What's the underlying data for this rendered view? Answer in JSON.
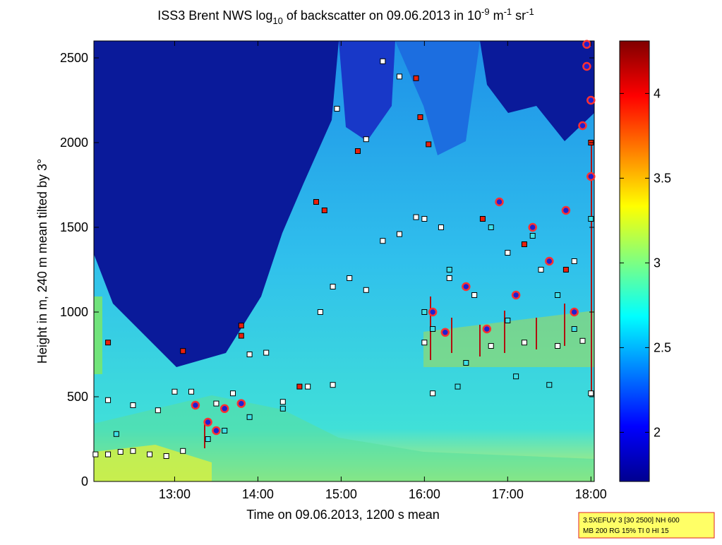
{
  "chart_data": {
    "type": "scatter",
    "title": [
      "ISS3 Brent NWS log",
      "10",
      " of backscatter on 09.06.2013 in 10",
      "-9",
      " m",
      "-1",
      " sr",
      "-1"
    ],
    "x_label": "Time on 09.06.2013, 1200 s mean",
    "y_label": "Height in m, 240 m mean tilted by 3°",
    "xlim": [
      12.03,
      18.04
    ],
    "xticks": [
      {
        "value": 13,
        "label": "13:00"
      },
      {
        "value": 14,
        "label": "14:00"
      },
      {
        "value": 15,
        "label": "15:00"
      },
      {
        "value": 16,
        "label": "16:00"
      },
      {
        "value": 17,
        "label": "17:00"
      },
      {
        "value": 18,
        "label": "18:00"
      }
    ],
    "ylim": [
      0,
      2600
    ],
    "yticks": [
      0,
      500,
      1000,
      1500,
      2000,
      2500
    ],
    "colorbar": {
      "lim": [
        1.71,
        4.31
      ],
      "ticks": [
        2,
        2.5,
        3,
        3.5,
        4
      ]
    },
    "annotation": [
      "3.5XEFUV 3 [30 2500] NH 600",
      "MB 200 RG 15% TI 0 HI 15"
    ],
    "series": [
      {
        "marker": "square",
        "color": "#ffffff",
        "edge": "#000000",
        "x": [
          12.05,
          12.2,
          12.35,
          12.5,
          12.7,
          12.9,
          13.1,
          12.2,
          12.5,
          12.8,
          13.0,
          13.2,
          13.5,
          13.7,
          13.9,
          14.1,
          14.3,
          14.6,
          14.9,
          14.75,
          14.9,
          15.1,
          15.3,
          15.5,
          15.7,
          15.9,
          16.0,
          16.2,
          15.5,
          15.7,
          15.3,
          14.95,
          16.0,
          16.8,
          17.2,
          17.6,
          17.9,
          18.0,
          16.1,
          16.3,
          16.6,
          17.0,
          17.4,
          17.8
        ],
        "values": [
          160,
          160,
          175,
          180,
          160,
          150,
          180,
          480,
          450,
          420,
          530,
          530,
          460,
          520,
          750,
          760,
          470,
          560,
          570,
          1000,
          1150,
          1200,
          1130,
          1420,
          1460,
          1560,
          1550,
          1500,
          2480,
          2390,
          2020,
          2200,
          820,
          800,
          820,
          800,
          830,
          520,
          520,
          1200,
          1100,
          1350,
          1250,
          1300
        ]
      },
      {
        "marker": "square",
        "color": "#e8200c",
        "edge": "#000000",
        "x": [
          12.2,
          13.1,
          13.8,
          13.8,
          14.5,
          14.7,
          14.8,
          15.2,
          15.9,
          16.05,
          15.95,
          16.7,
          17.2,
          17.7,
          18.0
        ],
        "values": [
          820,
          770,
          920,
          860,
          560,
          1650,
          1600,
          1950,
          2380,
          1990,
          2150,
          1550,
          1400,
          1250,
          2000
        ]
      },
      {
        "marker": "square",
        "color": "#40e0e8",
        "edge": "#000000",
        "x": [
          12.3,
          13.4,
          13.6,
          13.9,
          14.3,
          16.0,
          16.1,
          16.3,
          16.5,
          16.8,
          17.0,
          17.3,
          17.6,
          17.8,
          18.0,
          16.4,
          17.1,
          17.5
        ],
        "values": [
          280,
          250,
          300,
          380,
          430,
          1000,
          900,
          1250,
          700,
          1500,
          950,
          1450,
          1100,
          900,
          1550,
          560,
          620,
          570
        ]
      },
      {
        "marker": "circle",
        "color": "#2020d0",
        "edge": "#ff3030",
        "x": [
          13.25,
          13.4,
          13.5,
          13.6,
          13.8,
          16.1,
          16.25,
          16.5,
          16.75,
          16.9,
          17.1,
          17.3,
          17.5,
          17.7,
          17.8,
          17.9,
          18.0,
          18.0,
          17.95,
          17.95
        ],
        "values": [
          450,
          350,
          300,
          430,
          460,
          1000,
          880,
          1150,
          900,
          1650,
          1100,
          1500,
          1300,
          1600,
          1000,
          2100,
          2250,
          1800,
          2450,
          2580
        ]
      }
    ]
  }
}
